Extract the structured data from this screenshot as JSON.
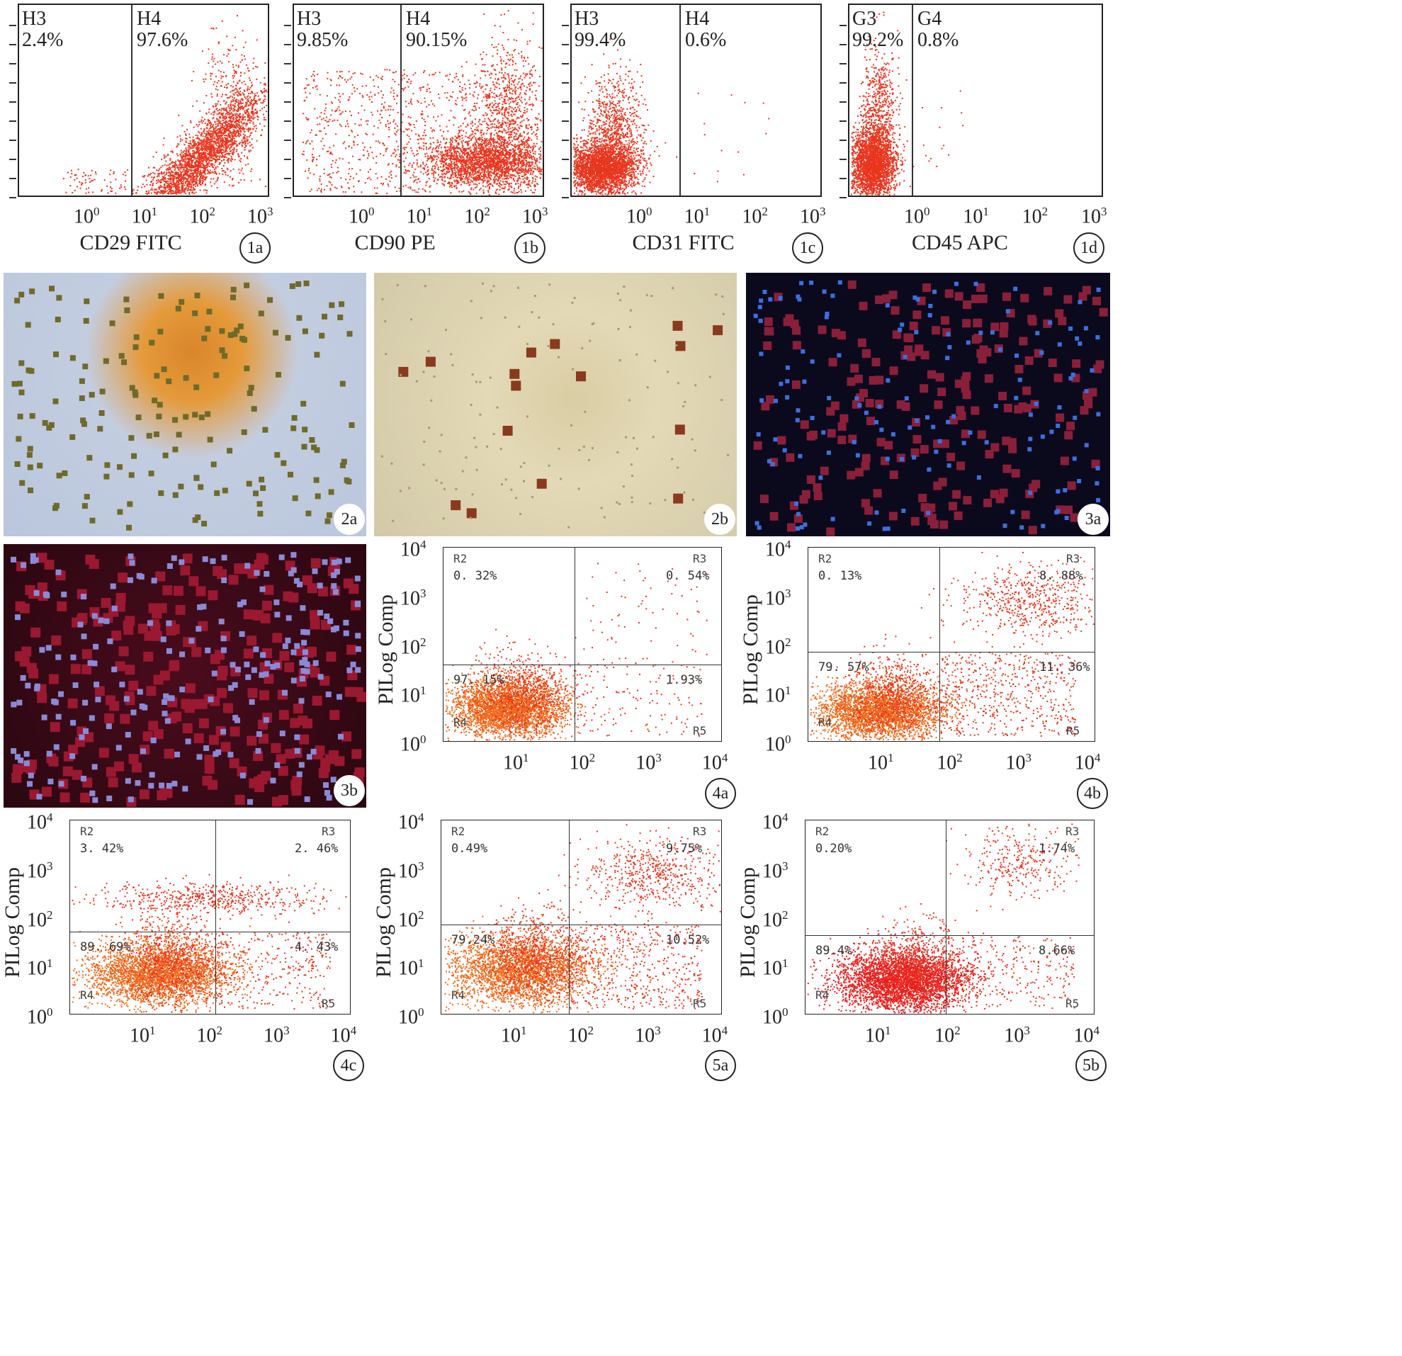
{
  "row1": [
    {
      "id": "1a",
      "xlabel": "CD29 FITC",
      "gates": [
        {
          "name": "H3",
          "value": "2.4%"
        },
        {
          "name": "H4",
          "value": "97.6%"
        }
      ],
      "xticks": [
        {
          "base": "10",
          "exp": "0"
        },
        {
          "base": "10",
          "exp": "1"
        },
        {
          "base": "10",
          "exp": "2"
        },
        {
          "base": "10",
          "exp": "3"
        }
      ]
    },
    {
      "id": "1b",
      "xlabel": "CD90 PE",
      "gates": [
        {
          "name": "H3",
          "value": "9.85%"
        },
        {
          "name": "H4",
          "value": "90.15%"
        }
      ],
      "xticks": [
        {
          "base": "10",
          "exp": "0"
        },
        {
          "base": "10",
          "exp": "1"
        },
        {
          "base": "10",
          "exp": "2"
        },
        {
          "base": "10",
          "exp": "3"
        }
      ]
    },
    {
      "id": "1c",
      "xlabel": "CD31 FITC",
      "gates": [
        {
          "name": "H3",
          "value": "99.4%"
        },
        {
          "name": "H4",
          "value": "0.6%"
        }
      ],
      "xticks": [
        {
          "base": "10",
          "exp": "0"
        },
        {
          "base": "10",
          "exp": "1"
        },
        {
          "base": "10",
          "exp": "2"
        },
        {
          "base": "10",
          "exp": "3"
        }
      ]
    },
    {
      "id": "1d",
      "xlabel": "CD45 APC",
      "gates": [
        {
          "name": "G3",
          "value": "99.2%"
        },
        {
          "name": "G4",
          "value": "0.8%"
        }
      ],
      "xticks": [
        {
          "base": "10",
          "exp": "0"
        },
        {
          "base": "10",
          "exp": "1"
        },
        {
          "base": "10",
          "exp": "2"
        },
        {
          "base": "10",
          "exp": "3"
        }
      ]
    }
  ],
  "photos": [
    {
      "id": "2a",
      "desc": "brightfield"
    },
    {
      "id": "2b",
      "desc": "brightfield"
    },
    {
      "id": "3a",
      "desc": "fluorescence"
    },
    {
      "id": "3b",
      "desc": "fluorescence"
    }
  ],
  "apoptosis": [
    {
      "id": "4a",
      "ylabel": "PILog Comp",
      "R2": "0. 32%",
      "R3": "0. 54%",
      "R4": "97. 15%",
      "R5": "1.93%"
    },
    {
      "id": "4b",
      "ylabel": "PILog Comp",
      "R2": "0. 13%",
      "R3": "8. 88%",
      "R4": "79. 57%",
      "R5": "11. 36%"
    },
    {
      "id": "4c",
      "ylabel": "PILog Comp",
      "R2": "3. 42%",
      "R3": "2. 46%",
      "R4": "89. 69%",
      "R5": "4. 43%"
    },
    {
      "id": "5a",
      "ylabel": "PILog Comp",
      "R2": "0.49%",
      "R3": "9.75%",
      "R4": "79.24%",
      "R5": "10.52%"
    },
    {
      "id": "5b",
      "ylabel": "PILog Comp",
      "R2": "0.20%",
      "R3": "1.74%",
      "R4": "89.4%",
      "R5": "8.66%"
    }
  ],
  "region_names": {
    "r2": "R2",
    "r3": "R3",
    "r4": "R4",
    "r5": "R5"
  },
  "logticks": [
    {
      "base": "10",
      "exp": "0"
    },
    {
      "base": "10",
      "exp": "1"
    },
    {
      "base": "10",
      "exp": "2"
    },
    {
      "base": "10",
      "exp": "3"
    },
    {
      "base": "10",
      "exp": "4"
    }
  ],
  "colors": {
    "dots": "#e8361f",
    "dots_dense": "#f06a1a",
    "frame": "#222222"
  }
}
